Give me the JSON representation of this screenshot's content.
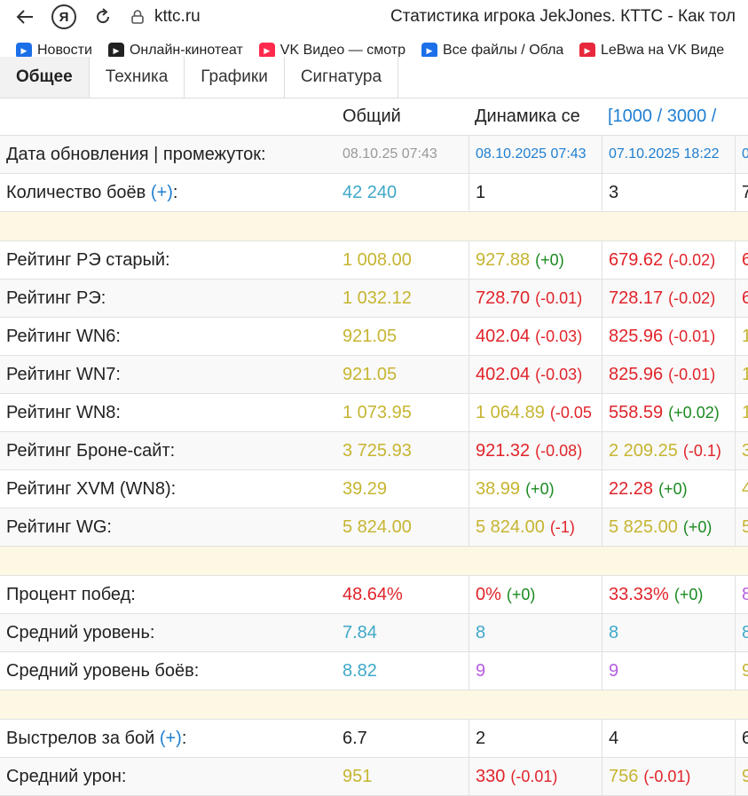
{
  "browser": {
    "url": "kttc.ru",
    "title": "Статистика игрока JekJones. КТТС - Как тол",
    "yandex_letter": "Я"
  },
  "bookmarks": [
    {
      "label": "Новости",
      "color": "#1b6fe8",
      "icon": "play-icon"
    },
    {
      "label": "Онлайн-кинотеат",
      "color": "#222222",
      "icon": "kinopoisk-icon"
    },
    {
      "label": "VK Видео — смотр",
      "color": "#ff2a4d",
      "icon": "vk-video-icon"
    },
    {
      "label": "Все файлы / Обла",
      "color": "#1b6fe8",
      "icon": "cloud-icon"
    },
    {
      "label": "LeBwa на VK Виде",
      "color": "#e8283c",
      "icon": "live-icon"
    }
  ],
  "tabs": [
    "Общее",
    "Техника",
    "Графики",
    "Сигнатура"
  ],
  "table": {
    "header": {
      "general": "Общий",
      "dynamics": "Динамика се",
      "ranges": "[1000 / 3000 /"
    },
    "update_row": {
      "label": "Дата обновления | промежуток:",
      "general": "08.10.25 07:43",
      "col1": "08.10.2025 07:43",
      "col2": "07.10.2025 18:22",
      "col3": "0"
    },
    "battles_row": {
      "label": "Количество боёв",
      "plus": "(+)",
      "colon": ":",
      "general": "42 240",
      "col1": "1",
      "col2": "3",
      "col3": "7"
    },
    "ratings": [
      {
        "label": "Рейтинг РЭ старый:",
        "general": "1 008.00",
        "v1": "927.88",
        "d1": "(+0)",
        "c1": "yellow",
        "dc1": "green",
        "v2": "679.62",
        "d2": "(-0.02)",
        "c2": "red",
        "dc2": "red",
        "v3": "6",
        "c3": "red"
      },
      {
        "label": "Рейтинг РЭ:",
        "general": "1 032.12",
        "v1": "728.70",
        "d1": "(-0.01)",
        "c1": "red",
        "dc1": "red",
        "v2": "728.17",
        "d2": "(-0.02)",
        "c2": "red",
        "dc2": "red",
        "v3": "6",
        "c3": "red"
      },
      {
        "label": "Рейтинг WN6:",
        "general": "921.05",
        "v1": "402.04",
        "d1": "(-0.03)",
        "c1": "red",
        "dc1": "red",
        "v2": "825.96",
        "d2": "(-0.01)",
        "c2": "red",
        "dc2": "red",
        "v3": "1",
        "c3": "yellow"
      },
      {
        "label": "Рейтинг WN7:",
        "general": "921.05",
        "v1": "402.04",
        "d1": "(-0.03)",
        "c1": "red",
        "dc1": "red",
        "v2": "825.96",
        "d2": "(-0.01)",
        "c2": "red",
        "dc2": "red",
        "v3": "1",
        "c3": "yellow"
      },
      {
        "label": "Рейтинг WN8:",
        "general": "1 073.95",
        "v1": "1 064.89",
        "d1": "(-0.05",
        "c1": "yellow",
        "dc1": "red",
        "v2": "558.59",
        "d2": "(+0.02)",
        "c2": "red",
        "dc2": "green",
        "v3": "1",
        "c3": "yellow"
      },
      {
        "label": "Рейтинг Броне-сайт:",
        "general": "3 725.93",
        "v1": "921.32",
        "d1": "(-0.08)",
        "c1": "red",
        "dc1": "red",
        "v2": "2 209.25",
        "d2": "(-0.1)",
        "c2": "yellow",
        "dc2": "red",
        "v3": "3",
        "c3": "yellow"
      },
      {
        "label": "Рейтинг XVM (WN8):",
        "general": "39.29",
        "v1": "38.99",
        "d1": "(+0)",
        "c1": "yellow",
        "dc1": "green",
        "v2": "22.28",
        "d2": "(+0)",
        "c2": "red",
        "dc2": "green",
        "v3": "4",
        "c3": "yellow"
      },
      {
        "label": "Рейтинг WG:",
        "general": "5 824.00",
        "v1": "5 824.00",
        "d1": "(-1)",
        "c1": "yellow",
        "dc1": "red",
        "v2": "5 825.00",
        "d2": "(+0)",
        "c2": "yellow",
        "dc2": "green",
        "v3": "5",
        "c3": "yellow"
      }
    ],
    "wins": [
      {
        "label": "Процент побед:",
        "general": "48.64%",
        "gc": "red",
        "v1": "0%",
        "d1": "(+0)",
        "c1": "red",
        "dc1": "green",
        "v2": "33.33%",
        "d2": "(+0)",
        "c2": "red",
        "dc2": "green",
        "v3": "8",
        "c3": "purple"
      },
      {
        "label": "Средний уровень:",
        "general": "7.84",
        "gc": "blue",
        "v1": "8",
        "d1": "",
        "c1": "blue",
        "dc1": "green",
        "v2": "8",
        "d2": "",
        "c2": "blue",
        "dc2": "green",
        "v3": "8",
        "c3": "blue"
      },
      {
        "label": "Средний уровень боёв:",
        "general": "8.82",
        "gc": "blue",
        "v1": "9",
        "d1": "",
        "c1": "purple",
        "dc1": "green",
        "v2": "9",
        "d2": "",
        "c2": "purple",
        "dc2": "green",
        "v3": "9",
        "c3": "yellow"
      }
    ],
    "shots_row": {
      "label": "Выстрелов за бой",
      "plus": "(+)",
      "colon": ":",
      "general": "6.7",
      "col1": "2",
      "col2": "4",
      "col3": "6"
    },
    "damage_row": {
      "label": "Средний урон:",
      "general": "951",
      "v1": "330",
      "d1": "(-0.01)",
      "v2": "756",
      "d2": "(-0.01)",
      "v3": "9"
    }
  }
}
